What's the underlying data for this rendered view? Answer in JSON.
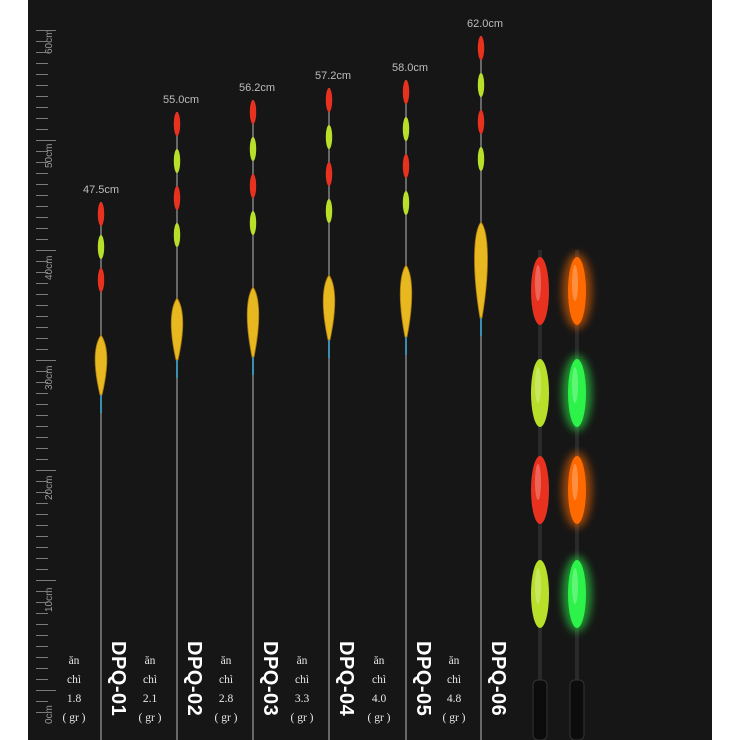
{
  "ruler": {
    "labels": [
      "60cm",
      "50cm",
      "40cm",
      "30cm",
      "20cm",
      "10cm",
      "0cm"
    ]
  },
  "floats": [
    {
      "code": "DPQ-01",
      "length": "47.5cm",
      "lead_1": "ăn",
      "lead_2": "chì",
      "weight": "1.8",
      "unit": "( gr )"
    },
    {
      "code": "DPQ-02",
      "length": "55.0cm",
      "lead_1": "ăn",
      "lead_2": "chì",
      "weight": "2.1",
      "unit": "( gr )"
    },
    {
      "code": "DPQ-03",
      "length": "56.2cm",
      "lead_1": "ăn",
      "lead_2": "chì",
      "weight": "2.8",
      "unit": "( gr )"
    },
    {
      "code": "DPQ-04",
      "length": "57.2cm",
      "lead_1": "ăn",
      "lead_2": "chì",
      "weight": "3.3",
      "unit": "( gr )"
    },
    {
      "code": "DPQ-05",
      "length": "58.0cm",
      "lead_1": "ăn",
      "lead_2": "chì",
      "weight": "4.0",
      "unit": "( gr )"
    },
    {
      "code": "DPQ-06",
      "length": "62.0cm",
      "lead_1": "ăn",
      "lead_2": "chì",
      "weight": "4.8",
      "unit": "( gr )"
    }
  ],
  "colors": {
    "background": "#161616",
    "tip_red": "#e8321f",
    "tip_green": "#b8e02a",
    "body_yellow": "#e8b820",
    "glow_orange": "#ff6a00",
    "glow_green": "#2cf24a"
  },
  "icons": [
    "ruler",
    "float-tip",
    "float-body",
    "glow-tip-closeup"
  ]
}
